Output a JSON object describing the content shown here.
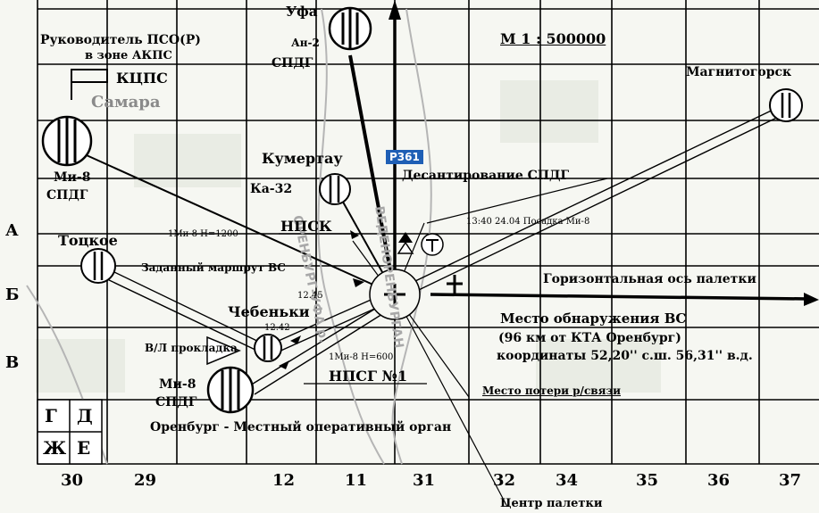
{
  "scale": "М  1 : 500000",
  "header": {
    "leader_line1": "Руководитель ПСО(Р)",
    "leader_line2": "в зоне АКПС",
    "kpts": "КЦПС",
    "samara": "Самара"
  },
  "cities": {
    "ufa": "Уфа",
    "an2": "Ан-2",
    "spdg_ufa": "СПДГ",
    "magnitogorsk": "Магнитогорск",
    "mi8_left": "Ми-8",
    "spdg_left": "СПДГ",
    "kumertau": "Кумертау",
    "ka32": "Ка-32",
    "totskoe": "Тоцкое",
    "chebenki": "Чебеньки",
    "mi8_orenburg": "Ми-8",
    "spdg_orenburg": "СПДГ",
    "orenburg": "Оренбург - Местный оперативный орган"
  },
  "annotations": {
    "badge": "Р361",
    "landing_spdg": "Десантирование СПДГ",
    "npsk": "НПСК",
    "mi8_landing": "13:40 24.04 Посадка Ми-8",
    "mi8_h1200": "1Ми-8 Н=1200",
    "route": "Заданный маршрут ВС",
    "time_1245": "12.45",
    "time_1242": "12.42",
    "horizontal_axis": "Горизонтальная ось палетки",
    "found_line1": "Место обнаружения ВС",
    "found_line2": "(96 км от КТА Оренбург)",
    "found_line3": "координаты 52,20'' с.ш. 56,31'' в.д.",
    "runway": "В/Л прокладка",
    "mi8_h600": "1Ми-8 Н=600",
    "npsg1": "НПСГ №1",
    "lost_comm": "Место потери р/связи",
    "pallet_center": "Центр палетки",
    "road_left": "ОРЕНБУРГ-УФА р.",
    "road_right": "ВЕДЕНОРЕНБУРГАН"
  },
  "row_labels": [
    "А",
    "Б",
    "В"
  ],
  "grid_key": [
    "Г",
    "Д",
    "Ж",
    "Е"
  ],
  "column_labels": [
    "30",
    "29",
    "12",
    "11",
    "31",
    "32",
    "34",
    "35",
    "36",
    "37"
  ],
  "colors": {
    "line": "#000000",
    "grid": "#000000",
    "road": "#a8a8a8",
    "badge": "#1f5fb5"
  }
}
